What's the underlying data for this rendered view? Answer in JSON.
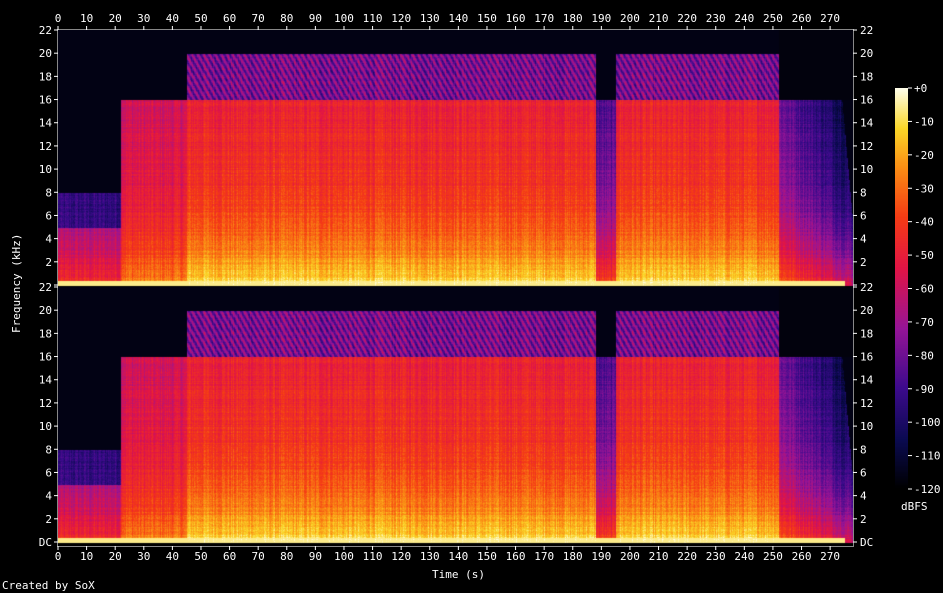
{
  "chart_data": {
    "type": "heatmap",
    "title": "",
    "xlabel": "Time (s)",
    "ylabel": "Frequency (kHz)",
    "xlim": [
      0,
      278
    ],
    "ylim": [
      0,
      22
    ],
    "x_ticks": [
      0,
      10,
      20,
      30,
      40,
      50,
      60,
      70,
      80,
      90,
      100,
      110,
      120,
      130,
      140,
      150,
      160,
      170,
      180,
      190,
      200,
      210,
      220,
      230,
      240,
      250,
      260,
      270
    ],
    "channels": [
      {
        "name": "",
        "y_ticks": [
          "22",
          "20",
          "18",
          "16",
          "14",
          "12",
          "10",
          "8",
          "6",
          "4",
          "2",
          ""
        ]
      },
      {
        "name": "",
        "y_ticks": [
          "22",
          "20",
          "18",
          "16",
          "14",
          "12",
          "10",
          "8",
          "6",
          "4",
          "2",
          "DC"
        ]
      }
    ],
    "colorbar": {
      "label": "dBFS",
      "ticks": [
        "+0",
        "-10",
        "-20",
        "-30",
        "-40",
        "-50",
        "-60",
        "-70",
        "-80",
        "-90",
        "-100",
        "-110",
        "-120"
      ],
      "range": [
        -120,
        0
      ]
    },
    "regions": [
      {
        "t_start": 0,
        "t_end": 22,
        "upper_cutoff_khz": 8,
        "level": "low"
      },
      {
        "t_start": 22,
        "t_end": 45,
        "upper_cutoff_khz": 16,
        "level": "medium"
      },
      {
        "t_start": 45,
        "t_end": 122,
        "upper_cutoff_khz": 20,
        "level": "high"
      },
      {
        "t_start": 122,
        "t_end": 188,
        "upper_cutoff_khz": 20,
        "level": "high"
      },
      {
        "t_start": 188,
        "t_end": 195,
        "upper_cutoff_khz": 16,
        "level": "low"
      },
      {
        "t_start": 195,
        "t_end": 252,
        "upper_cutoff_khz": 20,
        "level": "high"
      },
      {
        "t_start": 252,
        "t_end": 278,
        "upper_cutoff_khz": 16,
        "level": "fadeout"
      }
    ]
  },
  "footer": {
    "credit": "Created by SoX"
  },
  "colors": {
    "background": "#000000",
    "text": "#ffffff"
  }
}
